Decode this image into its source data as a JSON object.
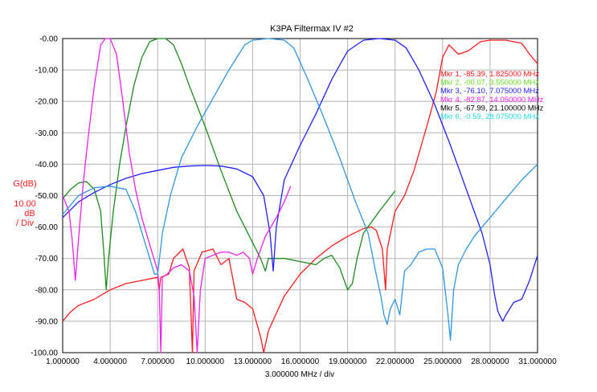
{
  "chart_data": {
    "type": "line",
    "title": "K3PA Filtermax IV #2",
    "xlabel": "3.000000 MHz / div",
    "ylabel": "G(dB)",
    "ylabel_scale": [
      "10.00",
      "dB",
      "/ Div"
    ],
    "xlim": [
      1.0,
      31.0
    ],
    "ylim": [
      -100,
      0
    ],
    "x_ticks": [
      "1.000000",
      "4.000000",
      "7.000000",
      "10.000000",
      "13.000000",
      "16.000000",
      "19.000000",
      "22.000000",
      "25.000000",
      "28.000000",
      "31.000000"
    ],
    "y_ticks": [
      "-0.00",
      "-10.00",
      "-20.00",
      "-30.00",
      "-40.00",
      "-50.00",
      "-60.00",
      "-70.00",
      "-80.00",
      "-90.00",
      "-100.00"
    ],
    "grid": true,
    "series": [
      {
        "color": "#ff1a1a",
        "points": [
          [
            1.0,
            -90
          ],
          [
            1.5,
            -87
          ],
          [
            2.0,
            -85
          ],
          [
            3.0,
            -83
          ],
          [
            4.0,
            -80
          ],
          [
            5.0,
            -78
          ],
          [
            6.0,
            -77
          ],
          [
            7.0,
            -76
          ],
          [
            7.1,
            -80
          ],
          [
            7.2,
            -76
          ],
          [
            7.7,
            -75
          ],
          [
            8.0,
            -70
          ],
          [
            8.6,
            -67
          ],
          [
            9.0,
            -73
          ],
          [
            9.2,
            -100
          ],
          [
            9.3,
            -74
          ],
          [
            9.8,
            -68
          ],
          [
            10.5,
            -67
          ],
          [
            11.0,
            -72
          ],
          [
            11.5,
            -70
          ],
          [
            12.0,
            -83
          ],
          [
            12.5,
            -84
          ],
          [
            13.0,
            -86
          ],
          [
            13.5,
            -95
          ],
          [
            13.7,
            -100
          ],
          [
            14.0,
            -93
          ],
          [
            15.0,
            -82
          ],
          [
            16.0,
            -75
          ],
          [
            17.0,
            -70
          ],
          [
            18.0,
            -66
          ],
          [
            19.0,
            -63
          ],
          [
            20.0,
            -60.5
          ],
          [
            20.5,
            -60
          ],
          [
            20.8,
            -61
          ],
          [
            21.2,
            -67
          ],
          [
            21.4,
            -80
          ],
          [
            21.5,
            -67
          ],
          [
            22.0,
            -55
          ],
          [
            22.6,
            -50
          ],
          [
            23.2,
            -42
          ],
          [
            24.0,
            -28
          ],
          [
            24.6,
            -17
          ],
          [
            25.0,
            -6
          ],
          [
            25.4,
            -2
          ],
          [
            26.0,
            -5
          ],
          [
            26.6,
            -4
          ],
          [
            27.4,
            -1
          ],
          [
            28.0,
            -0.5
          ],
          [
            29.0,
            -0.5
          ],
          [
            30.0,
            -1.5
          ],
          [
            30.5,
            -5
          ],
          [
            31.0,
            -8
          ]
        ]
      },
      {
        "color": "#1a8c1a",
        "points": [
          [
            1.0,
            -51
          ],
          [
            1.5,
            -48
          ],
          [
            2.0,
            -46
          ],
          [
            2.5,
            -45.5
          ],
          [
            3.0,
            -48
          ],
          [
            3.4,
            -55
          ],
          [
            3.6,
            -68
          ],
          [
            3.75,
            -80
          ],
          [
            3.9,
            -70
          ],
          [
            4.2,
            -55
          ],
          [
            4.6,
            -40
          ],
          [
            5.0,
            -28
          ],
          [
            5.5,
            -15
          ],
          [
            6.0,
            -6
          ],
          [
            6.5,
            -1
          ],
          [
            7.0,
            0
          ],
          [
            7.5,
            0
          ],
          [
            8.0,
            -2
          ],
          [
            8.5,
            -8
          ],
          [
            9.0,
            -15
          ],
          [
            10.0,
            -28
          ],
          [
            11.0,
            -42
          ],
          [
            12.0,
            -55
          ],
          [
            13.0,
            -65
          ],
          [
            13.5,
            -70
          ],
          [
            13.8,
            -74
          ],
          [
            14.0,
            -70
          ],
          [
            15.0,
            -70
          ],
          [
            16.0,
            -71
          ],
          [
            17.0,
            -72
          ],
          [
            17.5,
            -70
          ],
          [
            18.0,
            -69
          ],
          [
            18.5,
            -73
          ],
          [
            19.0,
            -80
          ],
          [
            19.3,
            -78
          ],
          [
            19.6,
            -70
          ],
          [
            20.0,
            -62
          ],
          [
            21.0,
            -55
          ],
          [
            22.0,
            -48.5
          ]
        ]
      },
      {
        "color": "#2020ff",
        "points": [
          [
            1.0,
            -57
          ],
          [
            2.0,
            -52
          ],
          [
            3.0,
            -49
          ],
          [
            4.0,
            -46.5
          ],
          [
            5.0,
            -44.5
          ],
          [
            6.0,
            -43
          ],
          [
            7.0,
            -42
          ],
          [
            8.0,
            -41
          ],
          [
            9.0,
            -40.6
          ],
          [
            10.0,
            -40.4
          ],
          [
            11.0,
            -40.6
          ],
          [
            12.0,
            -41.5
          ],
          [
            13.0,
            -44
          ],
          [
            13.7,
            -50
          ],
          [
            14.1,
            -62
          ],
          [
            14.3,
            -74
          ],
          [
            14.5,
            -60
          ],
          [
            15.0,
            -45
          ],
          [
            16.0,
            -34
          ],
          [
            17.0,
            -24
          ],
          [
            18.0,
            -13
          ],
          [
            19.0,
            -4
          ],
          [
            20.0,
            -0.5
          ],
          [
            21.0,
            0
          ],
          [
            22.0,
            -0.5
          ],
          [
            22.7,
            -3
          ],
          [
            23.5,
            -10
          ],
          [
            24.5,
            -21
          ],
          [
            25.5,
            -34
          ],
          [
            26.5,
            -48
          ],
          [
            27.5,
            -62
          ],
          [
            28.0,
            -72
          ],
          [
            28.3,
            -82
          ],
          [
            28.5,
            -87
          ],
          [
            28.8,
            -90
          ],
          [
            29.0,
            -88
          ],
          [
            29.5,
            -84
          ],
          [
            30.0,
            -83
          ],
          [
            30.5,
            -77
          ],
          [
            31.0,
            -69
          ]
        ]
      },
      {
        "color": "#ee20ee",
        "points": [
          [
            1.0,
            -50
          ],
          [
            1.4,
            -55
          ],
          [
            1.6,
            -64
          ],
          [
            1.8,
            -77
          ],
          [
            2.0,
            -64
          ],
          [
            2.3,
            -46
          ],
          [
            2.6,
            -32
          ],
          [
            3.0,
            -15
          ],
          [
            3.4,
            -2
          ],
          [
            3.7,
            0
          ],
          [
            4.0,
            0
          ],
          [
            4.4,
            -5
          ],
          [
            4.8,
            -20
          ],
          [
            5.2,
            -36
          ],
          [
            5.6,
            -48
          ],
          [
            6.0,
            -57
          ],
          [
            6.4,
            -64
          ],
          [
            6.7,
            -69
          ],
          [
            7.0,
            -74
          ],
          [
            7.1,
            -80
          ],
          [
            7.2,
            -100
          ],
          [
            7.3,
            -76
          ],
          [
            7.6,
            -75
          ],
          [
            8.0,
            -73
          ],
          [
            8.5,
            -72
          ],
          [
            9.0,
            -74
          ],
          [
            9.3,
            -82
          ],
          [
            9.5,
            -100
          ],
          [
            9.7,
            -80
          ],
          [
            10.0,
            -70
          ],
          [
            10.5,
            -69
          ],
          [
            11.0,
            -68
          ],
          [
            11.5,
            -68
          ],
          [
            12.0,
            -69
          ],
          [
            12.4,
            -68
          ],
          [
            12.8,
            -70
          ],
          [
            13.0,
            -75
          ],
          [
            13.3,
            -70
          ],
          [
            13.8,
            -63
          ],
          [
            14.5,
            -57
          ],
          [
            15.0,
            -52
          ],
          [
            15.4,
            -47
          ]
        ]
      },
      {
        "color": "#2e95e6",
        "points": [
          [
            1.0,
            -56
          ],
          [
            2.0,
            -50
          ],
          [
            3.0,
            -47.5
          ],
          [
            4.0,
            -47
          ],
          [
            5.0,
            -48
          ],
          [
            5.6,
            -55
          ],
          [
            6.2,
            -65
          ],
          [
            6.8,
            -75
          ],
          [
            7.0,
            -75
          ],
          [
            7.3,
            -62
          ],
          [
            7.8,
            -50
          ],
          [
            8.5,
            -38
          ],
          [
            9.5,
            -28
          ],
          [
            10.5,
            -19
          ],
          [
            11.5,
            -10
          ],
          [
            12.0,
            -6
          ],
          [
            12.5,
            -2
          ],
          [
            13.0,
            -0.5
          ],
          [
            14.0,
            0
          ],
          [
            15.0,
            -0.5
          ],
          [
            15.6,
            -3
          ],
          [
            16.4,
            -12
          ],
          [
            17.4,
            -24
          ],
          [
            18.5,
            -38
          ],
          [
            19.5,
            -52
          ],
          [
            20.3,
            -62
          ],
          [
            20.8,
            -75
          ],
          [
            21.1,
            -82
          ],
          [
            21.3,
            -88
          ],
          [
            21.5,
            -91
          ],
          [
            21.7,
            -86
          ],
          [
            22.0,
            -83
          ],
          [
            22.3,
            -88
          ],
          [
            22.6,
            -74
          ],
          [
            23.0,
            -72
          ],
          [
            23.5,
            -68
          ],
          [
            24.0,
            -67
          ],
          [
            24.5,
            -67
          ],
          [
            25.0,
            -73
          ],
          [
            25.3,
            -86
          ],
          [
            25.5,
            -96
          ],
          [
            25.7,
            -80
          ],
          [
            26.0,
            -72
          ],
          [
            26.5,
            -67
          ],
          [
            27.0,
            -63
          ],
          [
            27.5,
            -60
          ],
          [
            28.0,
            -57
          ],
          [
            29.0,
            -51
          ],
          [
            30.0,
            -45
          ],
          [
            31.0,
            -40
          ]
        ]
      }
    ],
    "markers": [
      {
        "label": "Mkr 1, -85.39, 1.825000 MHz",
        "color": "#ff1a1a"
      },
      {
        "label": "Mkr 2, -00.07, 3.550000 MHz",
        "color": "#66dd22"
      },
      {
        "label": "Mkr 3, -76.10, 7.075000 MHz",
        "color": "#2020ff"
      },
      {
        "label": "Mkr 4, -82.87, 14.050000 MHz",
        "color": "#ee20ee"
      },
      {
        "label": "Mkr 5, -67.99, 21.100000 MHz",
        "color": "#000000"
      },
      {
        "label": "Mkr 6, -0.59, 28.075000 MHz",
        "color": "#22dddd"
      }
    ],
    "legend_position": "top-right"
  }
}
